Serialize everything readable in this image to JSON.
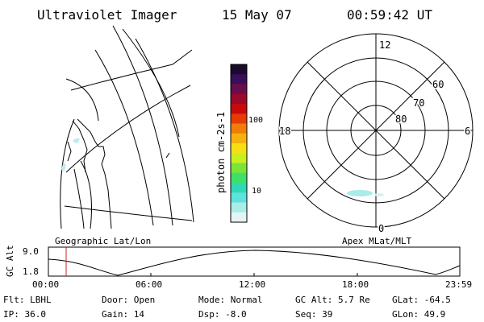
{
  "header": {
    "title": "Ultraviolet Imager",
    "date": "15 May 07",
    "time": "00:59:42 UT"
  },
  "left_panel": {
    "caption": "Geographic Lat/Lon"
  },
  "colorbar": {
    "label": "photon cm-2s-1",
    "ticks": [
      "100",
      "10"
    ],
    "colors": [
      "#1a0b2e",
      "#3a0e5a",
      "#6a0d4a",
      "#9a0a2a",
      "#c80a0a",
      "#e83a06",
      "#f27b0a",
      "#f5b20e",
      "#f6e014",
      "#c8f020",
      "#7ce436",
      "#3fe06a",
      "#2fd9b4",
      "#5ee2dc",
      "#a9ece8",
      "#e4f4f2"
    ]
  },
  "polar_plot": {
    "caption": "Apex MLat/MLT",
    "mlt_labels": [
      "12",
      "18",
      "6",
      "0"
    ],
    "mlat_labels": [
      "60",
      "70",
      "80"
    ]
  },
  "gc_alt_plot": {
    "ylabel": "GC Alt",
    "yticks": [
      "9.0",
      "1.8"
    ],
    "xticks": [
      "00:00",
      "06:00",
      "12:00",
      "18:00",
      "23:59"
    ],
    "marker_color": "#cc2222"
  },
  "status": {
    "flt": "Flt: LBHL",
    "door": "Door: Open",
    "mode": "Mode: Normal",
    "gc_alt": "GC Alt: 5.7 Re",
    "glat": "GLat: -64.5",
    "ip": "IP: 36.0",
    "gain": "Gain: 14",
    "dsp": "Dsp:   -8.0",
    "seq": "Seq: 39",
    "glon": "GLon:  49.9"
  }
}
